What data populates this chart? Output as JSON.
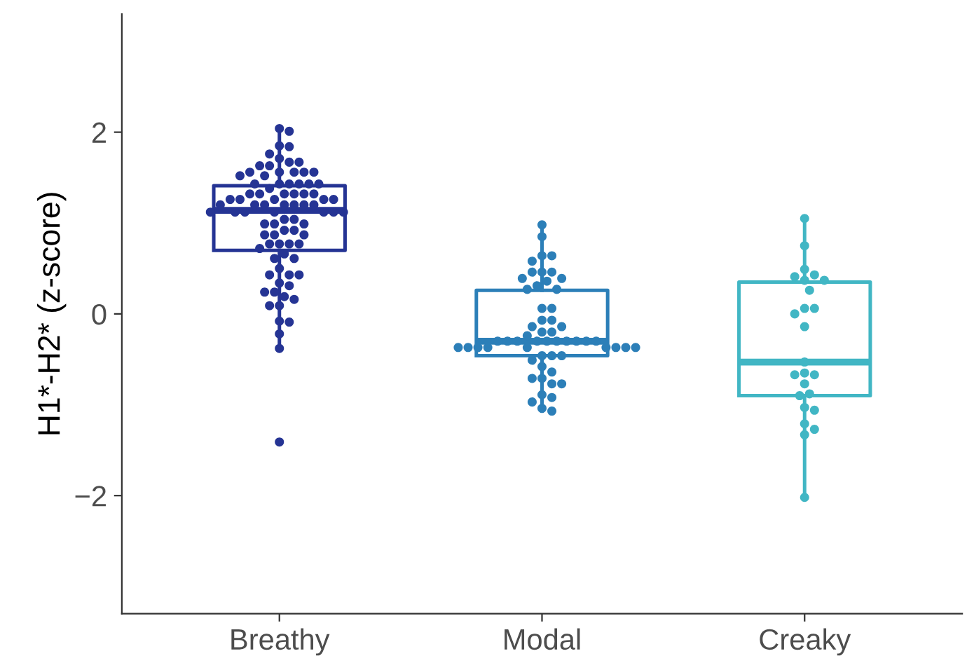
{
  "chart_data": {
    "type": "box",
    "ylabel": "H1*-H2* (z-score)",
    "categories": [
      "Breathy",
      "Modal",
      "Creaky"
    ],
    "colors": [
      "#253494",
      "#2c7fb8",
      "#41b6c4"
    ],
    "boxes": [
      {
        "low": -0.38,
        "q1": 0.7,
        "median": 1.14,
        "q3": 1.41,
        "high": 2.04
      },
      {
        "low": -1.07,
        "q1": -0.46,
        "median": -0.3,
        "q3": 0.26,
        "high": 0.98
      },
      {
        "low": -2.02,
        "q1": -0.9,
        "median": -0.53,
        "q3": 0.35,
        "high": 1.05
      }
    ],
    "series": [
      {
        "type": "scatter",
        "color": "#253494",
        "x": [
          "Breathy",
          "Breathy",
          "Breathy",
          "Breathy",
          "Breathy",
          "Breathy",
          "Breathy",
          "Breathy",
          "Breathy",
          "Breathy",
          "Breathy",
          "Breathy",
          "Breathy",
          "Breathy",
          "Breathy",
          "Breathy",
          "Breathy",
          "Breathy",
          "Breathy",
          "Breathy",
          "Breathy",
          "Breathy",
          "Breathy",
          "Breathy",
          "Breathy",
          "Breathy",
          "Breathy",
          "Breathy",
          "Breathy",
          "Breathy",
          "Breathy",
          "Breathy",
          "Breathy",
          "Breathy",
          "Breathy",
          "Breathy",
          "Breathy",
          "Breathy",
          "Breathy",
          "Breathy",
          "Breathy",
          "Breathy",
          "Breathy",
          "Breathy",
          "Breathy",
          "Breathy",
          "Breathy",
          "Breathy",
          "Breathy",
          "Breathy",
          "Breathy",
          "Breathy",
          "Breathy",
          "Breathy",
          "Breathy",
          "Breathy",
          "Breathy",
          "Breathy",
          "Breathy",
          "Breathy",
          "Breathy",
          "Breathy",
          "Breathy",
          "Breathy",
          "Breathy",
          "Breathy",
          "Breathy",
          "Breathy",
          "Breathy",
          "Breathy",
          "Breathy",
          "Breathy",
          "Breathy",
          "Breathy",
          "Breathy",
          "Breathy",
          "Breathy",
          "Breathy",
          "Breathy",
          "Breathy",
          "Breathy",
          "Breathy",
          "Breathy",
          "Breathy"
        ],
        "values": [
          2.04,
          2.01,
          1.85,
          1.84,
          1.76,
          1.71,
          1.67,
          1.67,
          1.63,
          1.63,
          1.56,
          1.56,
          1.56,
          1.56,
          1.56,
          1.52,
          1.52,
          1.43,
          1.43,
          1.43,
          1.43,
          1.43,
          1.43,
          1.38,
          1.32,
          1.32,
          1.32,
          1.32,
          1.32,
          1.32,
          1.26,
          1.26,
          1.26,
          1.26,
          1.26,
          1.2,
          1.2,
          1.2,
          1.2,
          1.2,
          1.2,
          1.2,
          1.12,
          1.12,
          1.12,
          1.12,
          1.12,
          1.12,
          1.12,
          1.04,
          1.04,
          0.99,
          0.99,
          0.99,
          0.92,
          0.92,
          0.87,
          0.87,
          0.87,
          0.77,
          0.77,
          0.77,
          0.77,
          0.72,
          0.66,
          0.61,
          0.61,
          0.5,
          0.43,
          0.43,
          0.43,
          0.34,
          0.31,
          0.24,
          0.24,
          0.19,
          0.16,
          0.09,
          0.09,
          -0.08,
          -0.09,
          -0.22,
          -0.38,
          -1.41
        ]
      },
      {
        "type": "scatter",
        "color": "#2c7fb8",
        "x": [
          "Modal",
          "Modal",
          "Modal",
          "Modal",
          "Modal",
          "Modal",
          "Modal",
          "Modal",
          "Modal",
          "Modal",
          "Modal",
          "Modal",
          "Modal",
          "Modal",
          "Modal",
          "Modal",
          "Modal",
          "Modal",
          "Modal",
          "Modal",
          "Modal",
          "Modal",
          "Modal",
          "Modal",
          "Modal",
          "Modal",
          "Modal",
          "Modal",
          "Modal",
          "Modal",
          "Modal",
          "Modal",
          "Modal",
          "Modal",
          "Modal",
          "Modal",
          "Modal",
          "Modal",
          "Modal",
          "Modal",
          "Modal",
          "Modal",
          "Modal",
          "Modal",
          "Modal",
          "Modal",
          "Modal",
          "Modal",
          "Modal",
          "Modal",
          "Modal",
          "Modal",
          "Modal",
          "Modal",
          "Modal",
          "Modal",
          "Modal"
        ],
        "values": [
          0.98,
          0.85,
          0.64,
          0.64,
          0.58,
          0.46,
          0.46,
          0.46,
          0.39,
          0.39,
          0.36,
          0.31,
          0.27,
          0.27,
          0.06,
          0.06,
          -0.07,
          -0.07,
          -0.14,
          -0.14,
          -0.2,
          -0.2,
          -0.24,
          -0.3,
          -0.3,
          -0.3,
          -0.3,
          -0.3,
          -0.3,
          -0.3,
          -0.3,
          -0.3,
          -0.3,
          -0.37,
          -0.37,
          -0.37,
          -0.37,
          -0.37,
          -0.37,
          -0.37,
          -0.37,
          -0.37,
          -0.46,
          -0.46,
          -0.46,
          -0.51,
          -0.58,
          -0.64,
          -0.71,
          -0.71,
          -0.77,
          -0.77,
          -0.89,
          -0.92,
          -0.97,
          -1.04,
          -1.07
        ]
      },
      {
        "type": "scatter",
        "color": "#41b6c4",
        "x": [
          "Creaky",
          "Creaky",
          "Creaky",
          "Creaky",
          "Creaky",
          "Creaky",
          "Creaky",
          "Creaky",
          "Creaky",
          "Creaky",
          "Creaky",
          "Creaky",
          "Creaky",
          "Creaky",
          "Creaky",
          "Creaky",
          "Creaky",
          "Creaky",
          "Creaky",
          "Creaky",
          "Creaky",
          "Creaky",
          "Creaky",
          "Creaky",
          "Creaky"
        ],
        "values": [
          1.05,
          0.75,
          0.49,
          0.43,
          0.41,
          0.37,
          0.37,
          0.26,
          0.06,
          0.06,
          0.0,
          -0.14,
          -0.53,
          -0.65,
          -0.67,
          -0.67,
          -0.77,
          -0.88,
          -0.9,
          -1.03,
          -1.06,
          -1.21,
          -1.27,
          -1.33,
          -2.02
        ]
      }
    ],
    "ylim": [
      -3.3,
      3.3
    ],
    "yticks": [
      -2,
      0,
      2
    ]
  }
}
